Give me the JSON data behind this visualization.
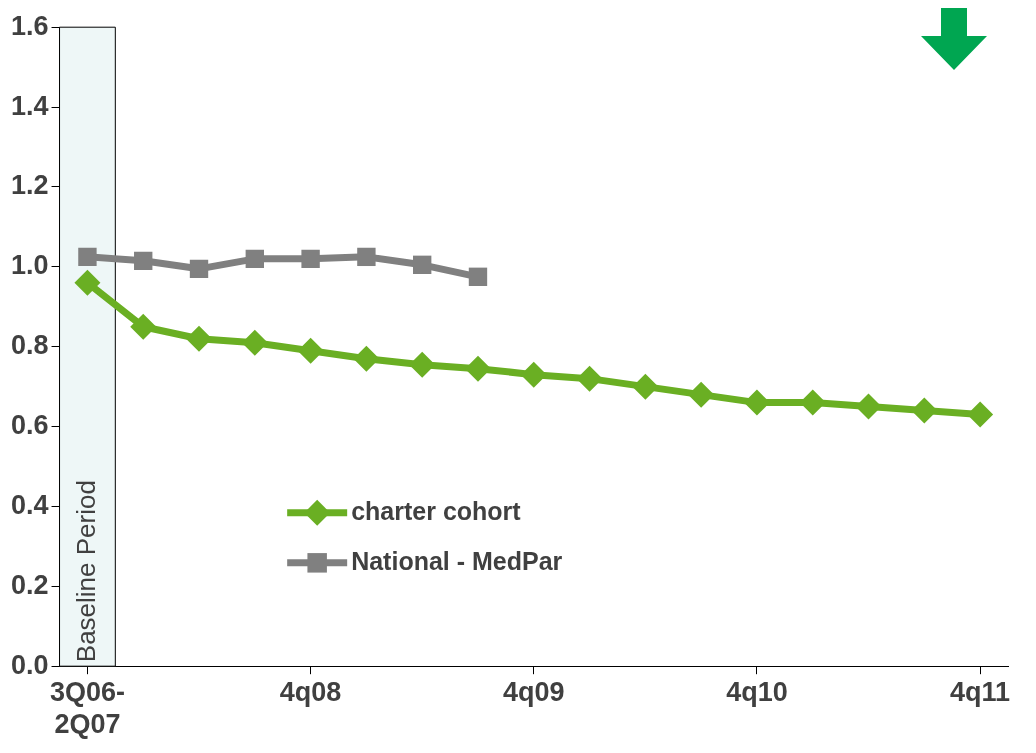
{
  "chart_data": {
    "type": "line",
    "categories": [
      "3Q06-2Q07",
      null,
      null,
      null,
      "4q08",
      null,
      null,
      null,
      "4q09",
      null,
      null,
      null,
      "4q10",
      null,
      null,
      null,
      "4q11"
    ],
    "series": [
      {
        "name": "charter cohort",
        "color": "#6aaf23",
        "marker": "diamond",
        "values": [
          0.96,
          0.85,
          0.82,
          0.81,
          0.79,
          0.77,
          0.755,
          0.745,
          0.73,
          0.72,
          0.7,
          0.68,
          0.66,
          0.66,
          0.65,
          0.64,
          0.63
        ]
      },
      {
        "name": "National - MedPar",
        "color": "#808080",
        "marker": "square",
        "values": [
          1.025,
          1.015,
          0.995,
          1.02,
          1.02,
          1.025,
          1.005,
          0.975,
          null,
          null,
          null,
          null,
          null,
          null,
          null,
          null,
          null
        ]
      }
    ],
    "ylim": [
      0,
      1.6
    ],
    "yticks": [
      {
        "value": 0,
        "label": "0.0"
      },
      {
        "value": 0.2,
        "label": "0.2"
      },
      {
        "value": 0.4,
        "label": "0.4"
      },
      {
        "value": 0.6,
        "label": "0.6"
      },
      {
        "value": 0.8,
        "label": "0.8"
      },
      {
        "value": 1.0,
        "label": "1.0"
      },
      {
        "value": 1.2,
        "label": "1.2"
      },
      {
        "value": 1.4,
        "label": "1.4"
      },
      {
        "value": 1.6,
        "label": "1.6"
      }
    ],
    "bands": [
      {
        "axis": "x",
        "from": "3Q06-2Q07",
        "to": "3Q06-2Q07",
        "label": "Baseline Period",
        "color": "#eef7f7"
      }
    ],
    "grid": false,
    "legend": "bottom",
    "line_style": "solid"
  }
}
